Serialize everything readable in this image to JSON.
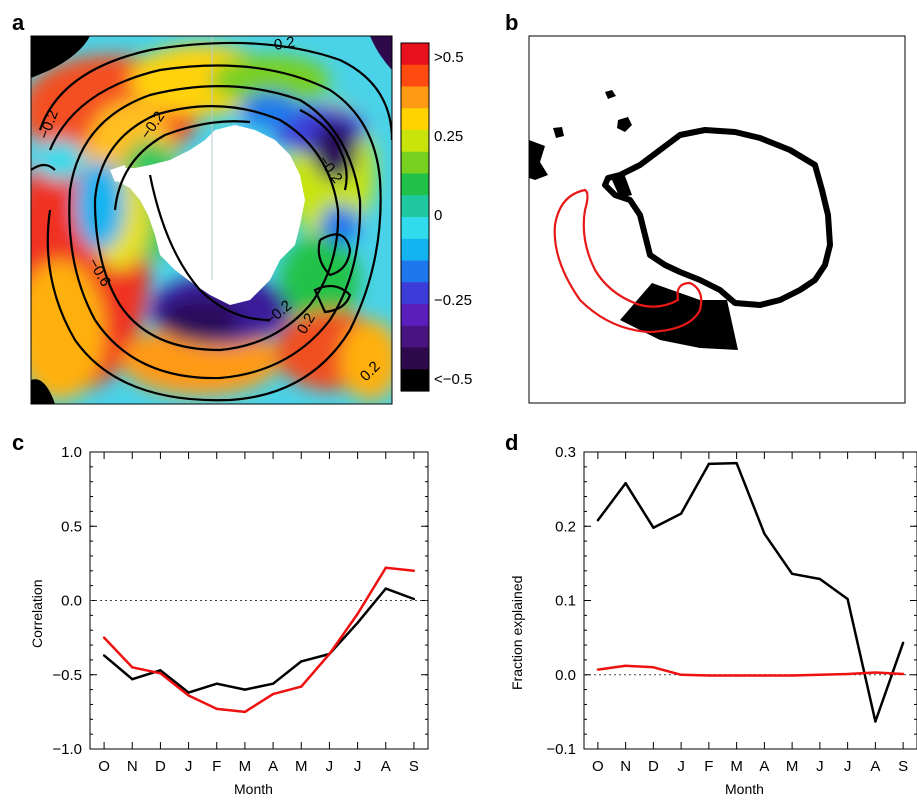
{
  "panels": {
    "a": {
      "letter": "a",
      "colorbar": {
        "labels": [
          ">0.5",
          "0.25",
          "0",
          "−0.25",
          "<−0.5"
        ],
        "colors": [
          "#e8101c",
          "#ff4a10",
          "#ff9a14",
          "#ffd200",
          "#c8e40a",
          "#78d020",
          "#22c24a",
          "#20c8a0",
          "#30dcec",
          "#14b4f0",
          "#1e78ec",
          "#3c3cd8",
          "#5a1ebc",
          "#4a1480",
          "#2e0a4c",
          "#000000"
        ]
      },
      "contour_labels": [
        "0.2",
        "−0.2",
        "−0.2",
        "−0.6",
        "−0.2",
        "0.2",
        "−0.2",
        "0.2"
      ]
    },
    "b": {
      "letter": "b"
    },
    "c": {
      "letter": "c"
    },
    "d": {
      "letter": "d"
    }
  },
  "chart_data": [
    {
      "panel": "a",
      "type": "heatmap",
      "title": "",
      "colorbar_range": [
        -0.5,
        0.5
      ],
      "colorbar_ticks": [
        ">0.5",
        "0.25",
        "0",
        "−0.25",
        "<−0.5"
      ],
      "contour_labels": [
        "0.2",
        "−0.2",
        "−0.6"
      ]
    },
    {
      "panel": "b",
      "type": "map",
      "title": ""
    },
    {
      "panel": "c",
      "type": "line",
      "categories": [
        "O",
        "N",
        "D",
        "J",
        "F",
        "M",
        "A",
        "M",
        "J",
        "J",
        "A",
        "S"
      ],
      "xlabel": "Month",
      "ylabel": "Correlation",
      "ylim": [
        -1.0,
        1.0
      ],
      "yticks": [
        -1.0,
        -0.5,
        0.0,
        0.5,
        1.0
      ],
      "ytick_labels": [
        "−1.0",
        "−0.5",
        "0.0",
        "0.5",
        "1.0"
      ],
      "zero_line": true,
      "series": [
        {
          "color": "#000000",
          "values": [
            -0.37,
            -0.53,
            -0.47,
            -0.62,
            -0.56,
            -0.6,
            -0.56,
            -0.41,
            -0.36,
            -0.15,
            0.08,
            0.01
          ]
        },
        {
          "color": "#ee1111",
          "values": [
            -0.25,
            -0.45,
            -0.49,
            -0.64,
            -0.73,
            -0.75,
            -0.63,
            -0.58,
            -0.36,
            -0.09,
            0.22,
            0.2
          ]
        }
      ]
    },
    {
      "panel": "d",
      "type": "line",
      "categories": [
        "O",
        "N",
        "D",
        "J",
        "F",
        "M",
        "A",
        "M",
        "J",
        "J",
        "A",
        "S"
      ],
      "xlabel": "Month",
      "ylabel": "Fraction explained",
      "ylim": [
        -0.1,
        0.3
      ],
      "yticks": [
        -0.1,
        0.0,
        0.1,
        0.2,
        0.3
      ],
      "ytick_labels": [
        "−0.1",
        "0.0",
        "0.1",
        "0.2",
        "0.3"
      ],
      "zero_line": true,
      "series": [
        {
          "color": "#000000",
          "values": [
            0.208,
            0.258,
            0.198,
            0.217,
            0.284,
            0.285,
            0.19,
            0.136,
            0.129,
            0.102,
            -0.063,
            0.043
          ]
        },
        {
          "color": "#ee1111",
          "values": [
            0.007,
            0.012,
            0.01,
            0.0,
            -0.001,
            -0.001,
            -0.001,
            -0.001,
            0.0,
            0.001,
            0.003,
            0.001
          ]
        }
      ]
    }
  ]
}
